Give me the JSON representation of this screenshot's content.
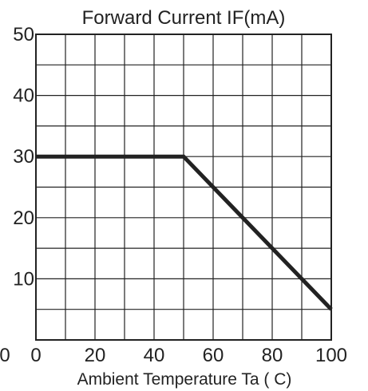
{
  "chart_data": {
    "type": "line",
    "title": "Forward Current IF(mA)",
    "xlabel": "Ambient Temperature Ta ( C)",
    "ylabel": "",
    "xlim": [
      0,
      100
    ],
    "ylim": [
      0,
      50
    ],
    "x_tick_labels": [
      "0",
      "20",
      "40",
      "60",
      "80",
      "100"
    ],
    "x_tick_values": [
      0,
      20,
      40,
      60,
      80,
      100
    ],
    "y_tick_labels": [
      "10",
      "20",
      "30",
      "40",
      "50"
    ],
    "y_tick_values": [
      10,
      20,
      30,
      40,
      50
    ],
    "origin_y_label": "0",
    "x_grid": [
      0,
      10,
      20,
      30,
      40,
      50,
      60,
      70,
      80,
      90,
      100
    ],
    "y_grid": [
      0,
      5,
      10,
      15,
      20,
      25,
      30,
      35,
      40,
      45,
      50
    ],
    "grid": true,
    "series": [
      {
        "x": [
          0,
          50,
          100
        ],
        "y": [
          30,
          30,
          5
        ],
        "color": "#222222"
      }
    ]
  }
}
